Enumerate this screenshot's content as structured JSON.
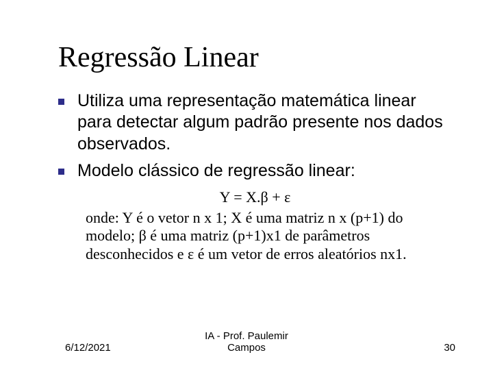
{
  "title": "Regressão Linear",
  "bullets": [
    "Utiliza uma representação matemática linear para detectar algum padrão presente nos dados observados.",
    "Modelo clássico de regressão linear:"
  ],
  "equation": "Y = X.β + ε",
  "description": "onde: Y é o vetor n x 1; X é uma matriz n x (p+1) do modelo; β é uma matriz (p+1)x1 de parâmetros desconhecidos e ε é um vetor de erros aleatórios nx1.",
  "footer": {
    "date": "6/12/2021",
    "center_line1": "IA - Prof. Paulemir",
    "center_line2": "Campos",
    "page": "30"
  },
  "style": {
    "bullet_color": "#2d2d8a",
    "title_fontsize": 42,
    "bullet_fontsize": 25,
    "serif_fontsize": 22,
    "footer_fontsize": 15,
    "background": "#ffffff",
    "text_color": "#000000"
  }
}
